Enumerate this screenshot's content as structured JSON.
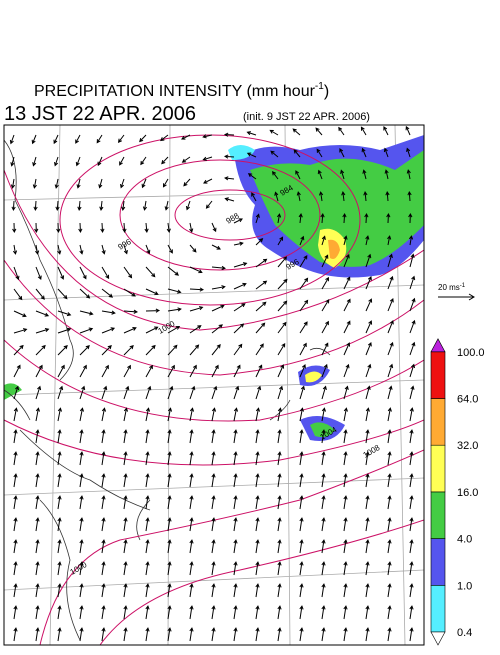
{
  "header": {
    "title": "PRECIPITATION INTENSITY (mm hour",
    "title_sup": "-1",
    "title_end": ")",
    "valid_time": "13 JST 22 APR. 2006",
    "init_time": "(init. 9 JST 22 APR. 2006)"
  },
  "wind_reference": {
    "label": "20 ms",
    "label_sup": "-1"
  },
  "isobar_labels": [
    984,
    988,
    996,
    996,
    1000,
    1004,
    1008,
    1000
  ],
  "colorbar": {
    "ticks": [
      {
        "value": 0.4,
        "label": "0.4"
      },
      {
        "value": 1,
        "label": "1.0"
      },
      {
        "value": 4,
        "label": "4.0"
      },
      {
        "value": 16,
        "label": "16.0"
      },
      {
        "value": 32,
        "label": "32.0"
      },
      {
        "value": 64,
        "label": "64.0"
      },
      {
        "value": 100,
        "label": "100.0"
      }
    ],
    "colors": [
      "#55eeff",
      "#5555ee",
      "#44cc44",
      "#ffff55",
      "#ffaa33",
      "#ee1111"
    ],
    "under_color": "#ffffff",
    "over_color": "#bb22dd"
  }
}
